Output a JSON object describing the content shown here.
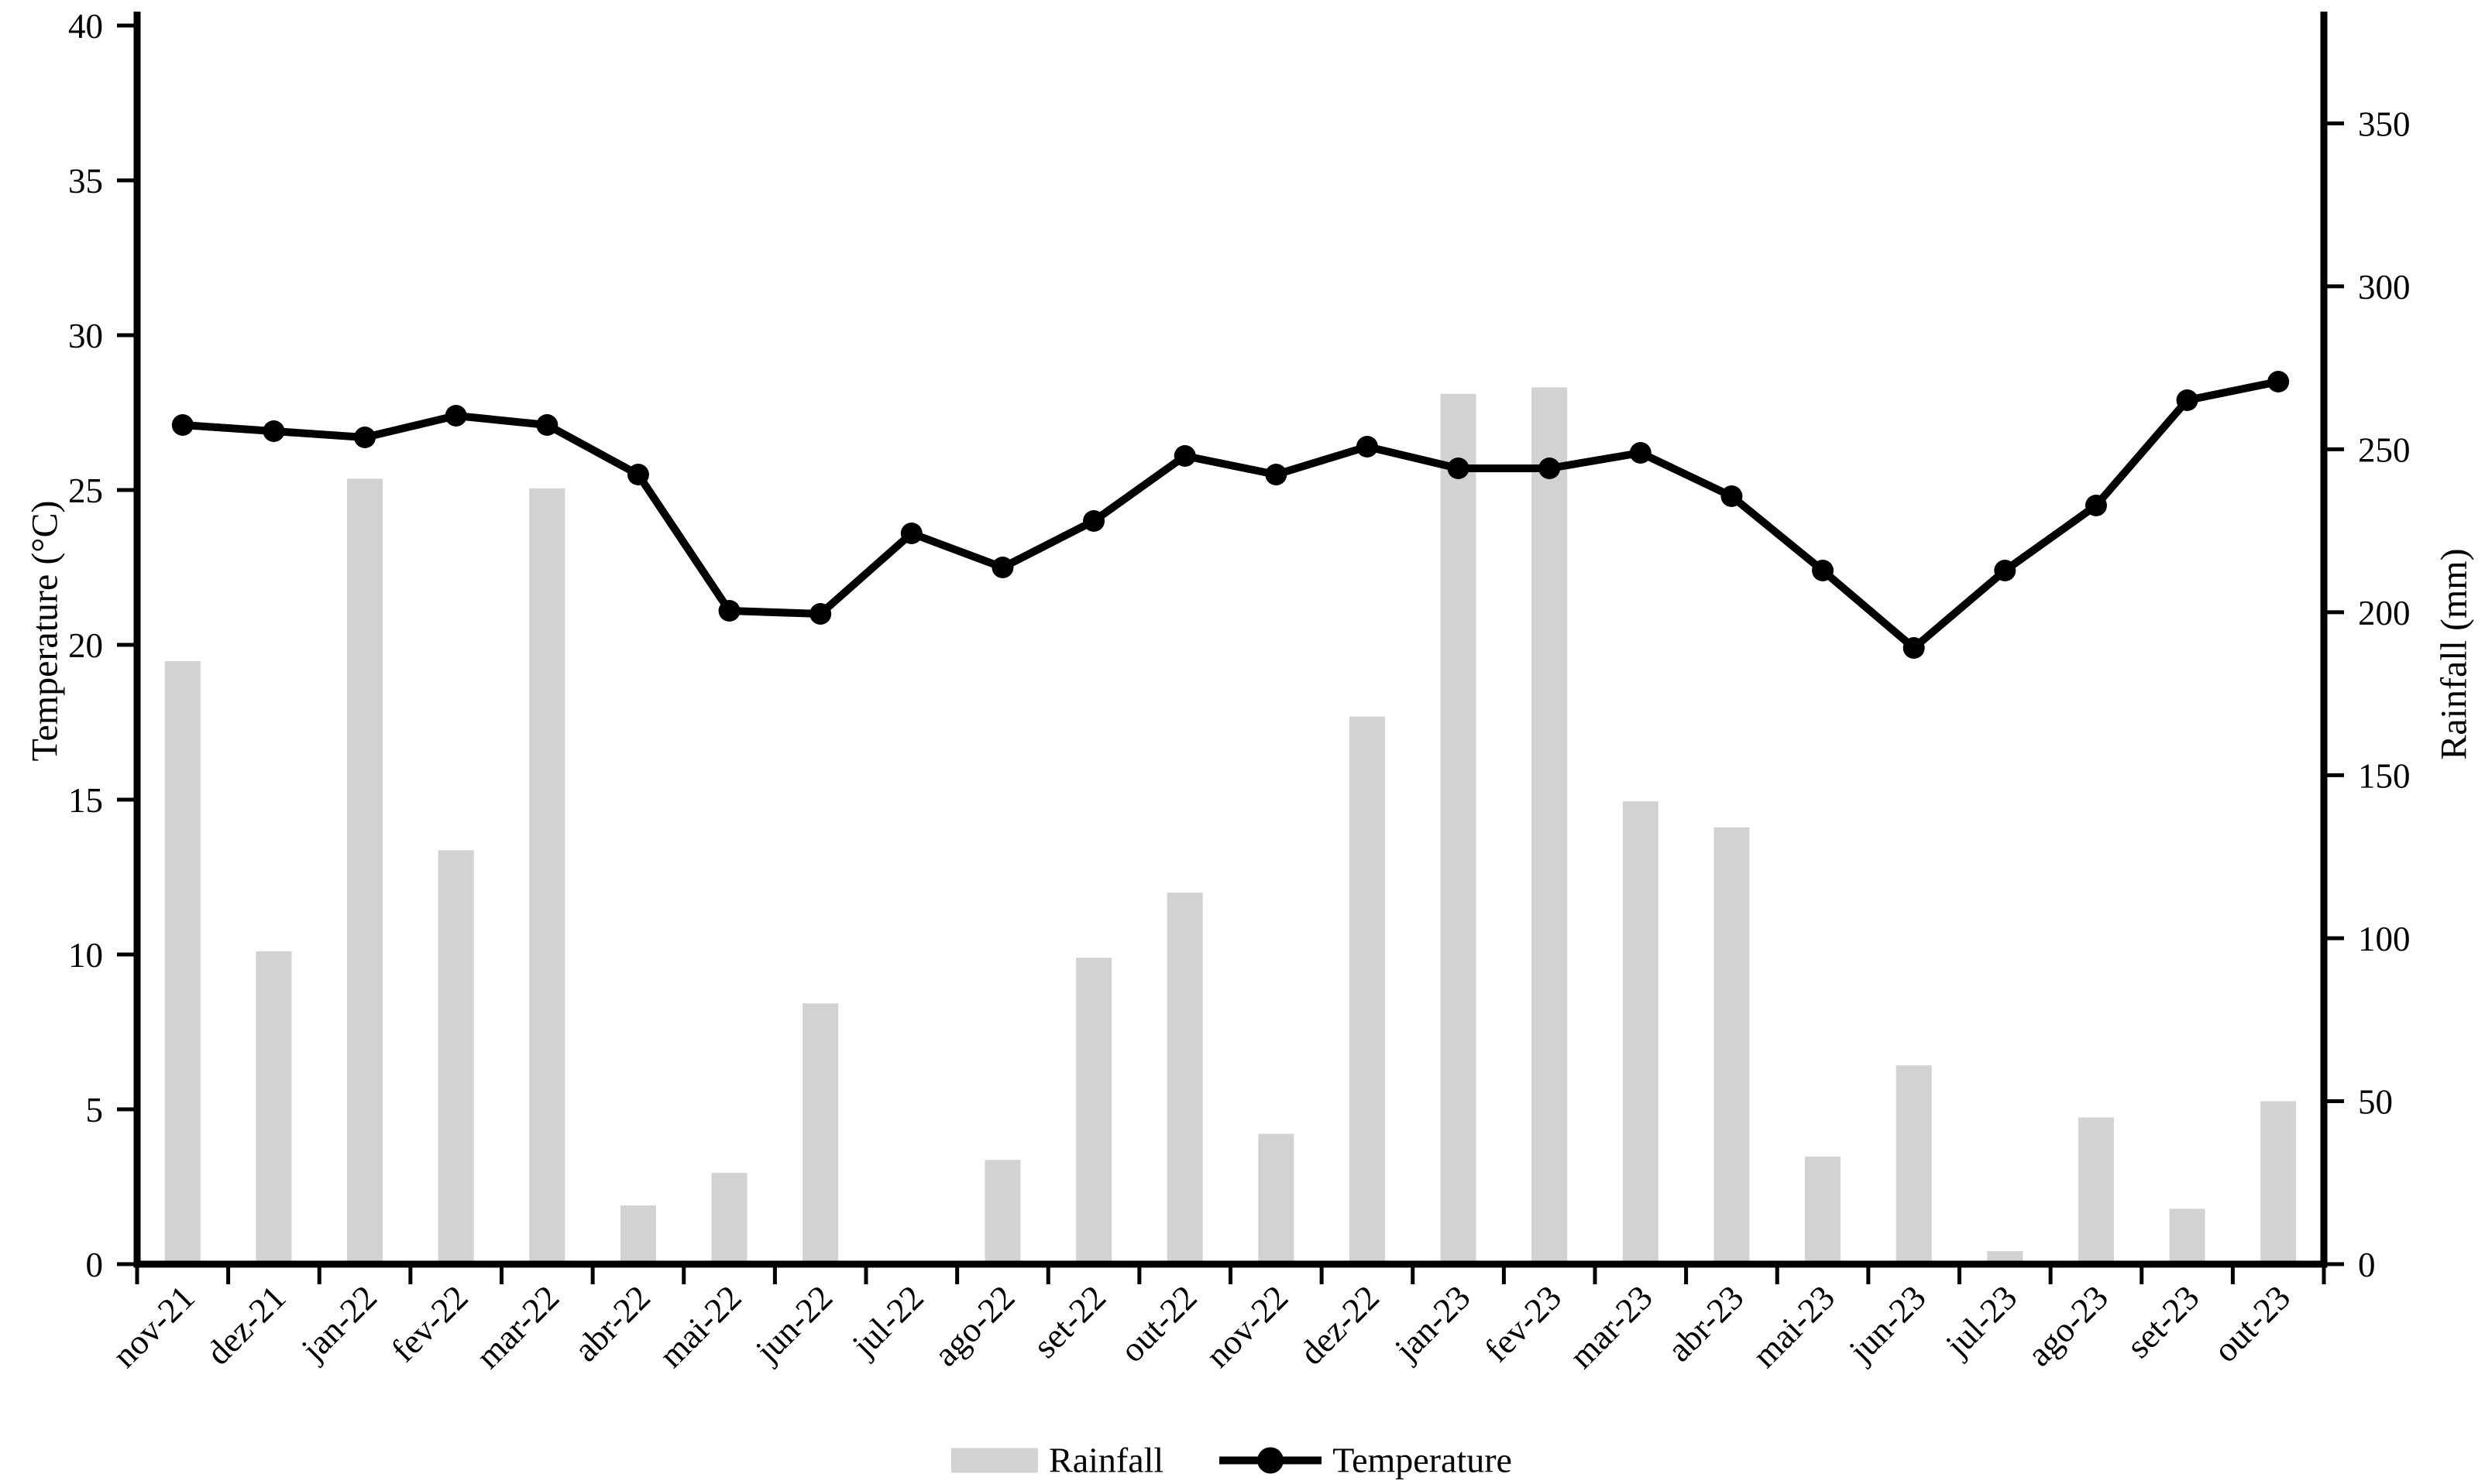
{
  "chart_data": {
    "type": "combo",
    "categories": [
      "nov-21",
      "dez-21",
      "jan-22",
      "fev-22",
      "mar-22",
      "abr-22",
      "mai-22",
      "jun-22",
      "jul-22",
      "ago-22",
      "set-22",
      "out-22",
      "nov-22",
      "dez-22",
      "jan-23",
      "fev-23",
      "mar-23",
      "abr-23",
      "mai-23",
      "jun-23",
      "jul-23",
      "ago-23",
      "set-23",
      "out-23"
    ],
    "series": [
      {
        "name": "Rainfall",
        "kind": "bar",
        "axis": "right",
        "unit": "mm",
        "color": "#d2d2d2",
        "values": [
          185,
          96,
          241,
          127,
          238,
          18,
          28,
          80,
          0,
          32,
          94,
          114,
          40,
          168,
          267,
          269,
          142,
          134,
          33,
          61,
          4,
          45,
          17,
          50
        ]
      },
      {
        "name": "Temperature",
        "kind": "line",
        "axis": "left",
        "unit": "°C",
        "color": "#000000",
        "values": [
          27.1,
          26.9,
          26.7,
          27.4,
          27.1,
          25.5,
          21.1,
          21.0,
          23.6,
          22.5,
          24.0,
          26.1,
          25.5,
          26.4,
          25.7,
          25.7,
          26.2,
          24.8,
          22.4,
          19.9,
          22.4,
          24.5,
          27.9,
          28.5
        ]
      }
    ],
    "left_axis": {
      "label": "Temperature (°C)",
      "min": 0,
      "max": 40,
      "ticks": [
        0,
        5,
        10,
        15,
        20,
        25,
        30,
        35,
        40
      ]
    },
    "right_axis": {
      "label": "Rainfall (mm)",
      "min": 0,
      "max": 380,
      "ticks": [
        0,
        50,
        100,
        150,
        200,
        250,
        300,
        350
      ]
    },
    "x_axis": {
      "tick_label_rotation": -45
    },
    "legend": {
      "position": "bottom",
      "items": [
        "Rainfall",
        "Temperature"
      ]
    },
    "grid": false,
    "background": "#ffffff"
  }
}
